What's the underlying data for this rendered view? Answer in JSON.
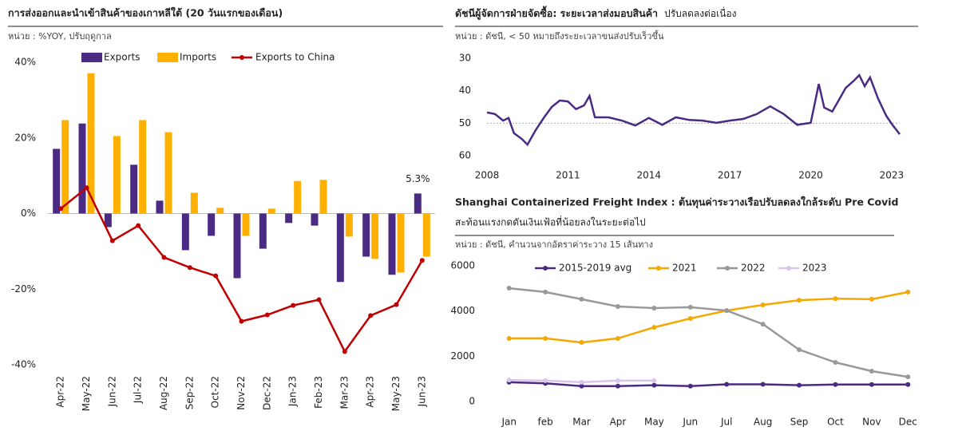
{
  "chart_data": [
    {
      "type": "bar",
      "title": "การส่งออกและนำเข้าสินค้าของเกาหลีใต้  (20 วันแรกของเดือน)",
      "subtitle": "หน่วย : %YOY, ปรับฤดูกาล",
      "categories": [
        "Apr-22",
        "May-22",
        "Jun-22",
        "Jul-22",
        "Aug-22",
        "Sep-22",
        "Oct-22",
        "Nov-22",
        "Dec-22",
        "Jan-23",
        "Feb-23",
        "Mar-23",
        "Apr-23",
        "May-23",
        "Jun-23"
      ],
      "series": [
        {
          "name": "Exports",
          "type": "bar",
          "color": "#4b2a83",
          "values": [
            17.1,
            23.8,
            -3.6,
            12.9,
            3.4,
            -9.7,
            -5.9,
            -17.1,
            -9.3,
            -2.5,
            -3.2,
            -18.1,
            -11.4,
            -16.2,
            5.3
          ],
          "value_labels": [
            null,
            null,
            null,
            null,
            null,
            null,
            null,
            null,
            null,
            null,
            null,
            null,
            null,
            null,
            "5.3%"
          ]
        },
        {
          "name": "Imports",
          "type": "bar",
          "color": "#ffb000",
          "values": [
            24.7,
            37.1,
            20.5,
            24.7,
            21.5,
            5.5,
            1.5,
            -5.9,
            1.3,
            8.6,
            8.9,
            -6.1,
            -12.0,
            -15.6,
            -11.4
          ]
        },
        {
          "name": "Exports to China",
          "type": "line",
          "color": "#c00000",
          "values": [
            1.3,
            6.8,
            -7.2,
            -3.2,
            -11.6,
            -14.3,
            -16.5,
            -28.5,
            -26.8,
            -24.3,
            -22.8,
            -36.5,
            -27.0,
            -24.1,
            -12.4
          ]
        }
      ],
      "ylim": [
        -40,
        40
      ],
      "yticks": [
        {
          "value": -40,
          "label": "-40%"
        },
        {
          "value": -20,
          "label": "-20%"
        },
        {
          "value": 0,
          "label": "0%"
        },
        {
          "value": 20,
          "label": "20%"
        },
        {
          "value": 40,
          "label": "40%"
        }
      ],
      "legend": "top"
    },
    {
      "type": "line",
      "title": "ดัชนีผู้จัดการฝ่ายจัดซื้อ:  ระยะเวลาส่งมอบสินค้า",
      "title_note": "ปรับลดลงต่อเนื่อง",
      "subtitle": "หน่วย : ดัชนี, < 50 หมายถึงระยะเวลาขนส่งปรับเร็วขึ้น",
      "x": [
        2008.0,
        2008.3,
        2008.6,
        2008.8,
        2009.0,
        2009.3,
        2009.5,
        2009.8,
        2010.1,
        2010.4,
        2010.7,
        2011.0,
        2011.3,
        2011.6,
        2011.8,
        2012.0,
        2012.5,
        2013.0,
        2013.5,
        2014.0,
        2014.5,
        2015.0,
        2015.5,
        2016.0,
        2016.5,
        2017.0,
        2017.5,
        2018.0,
        2018.5,
        2019.0,
        2019.5,
        2020.0,
        2020.2,
        2020.3,
        2020.5,
        2020.8,
        2021.0,
        2021.3,
        2021.6,
        2021.8,
        2022.0,
        2022.2,
        2022.5,
        2022.8,
        2023.0,
        2023.3
      ],
      "series": [
        {
          "name": null,
          "color": "#4b2a83",
          "values": [
            46.7,
            47.2,
            49.2,
            48.4,
            53.1,
            54.9,
            56.6,
            52.2,
            48.4,
            45.0,
            43.0,
            43.3,
            45.7,
            44.5,
            41.6,
            48.2,
            48.2,
            49.2,
            50.7,
            48.4,
            50.5,
            48.2,
            49.0,
            49.2,
            49.9,
            49.2,
            48.7,
            47.2,
            44.8,
            47.2,
            50.5,
            49.9,
            42.0,
            37.9,
            45.2,
            46.4,
            43.5,
            39.1,
            36.9,
            35.2,
            38.6,
            35.9,
            42.5,
            47.7,
            50.2,
            53.4
          ]
        }
      ],
      "xlim": [
        2008,
        2023.3
      ],
      "xticks": [
        2008,
        2011,
        2014,
        2017,
        2020,
        2023
      ],
      "ylim": [
        30,
        60
      ],
      "yticks": [
        30,
        40,
        50,
        60
      ],
      "y_inverted": true,
      "reference_line": 50
    },
    {
      "type": "line",
      "title": [
        "Shanghai Containerized Freight Index : ต้นทุนค่าระวางเรือปรับลดลงใกล้ระดับ Pre Covid",
        "สะท้อนแรงกดดันเงินเฟ้อที่น้อยลงในระยะต่อไป"
      ],
      "subtitle": "หน่วย : ดัชนี, คำนวนจากอัตราค่าระวาง 15 เส้นทาง",
      "categories": [
        "Jan",
        "feb",
        "Mar",
        "Apr",
        "May",
        "Jun",
        "Jul",
        "Aug",
        "Sep",
        "Oct",
        "Nov",
        "Dec"
      ],
      "series": [
        {
          "name": "2015-2019 avg",
          "color": "#4b2a83",
          "values": [
            850,
            800,
            680,
            680,
            720,
            680,
            760,
            760,
            720,
            750,
            750,
            750
          ]
        },
        {
          "name": "2021",
          "color": "#f5a800",
          "values": [
            2790,
            2790,
            2610,
            2790,
            3280,
            3670,
            4020,
            4270,
            4480,
            4550,
            4520,
            4840
          ]
        },
        {
          "name": "2022",
          "color": "#999999",
          "values": [
            5010,
            4840,
            4520,
            4200,
            4130,
            4170,
            4020,
            3420,
            2290,
            1730,
            1340,
            1090
          ]
        },
        {
          "name": "2023",
          "color": "#d9c6ec",
          "values": [
            950,
            920,
            850,
            920,
            920,
            null,
            null,
            null,
            null,
            null,
            null,
            null
          ]
        }
      ],
      "ylim": [
        0,
        6000
      ],
      "yticks": [
        0,
        2000,
        4000,
        6000
      ],
      "legend": "top"
    }
  ]
}
